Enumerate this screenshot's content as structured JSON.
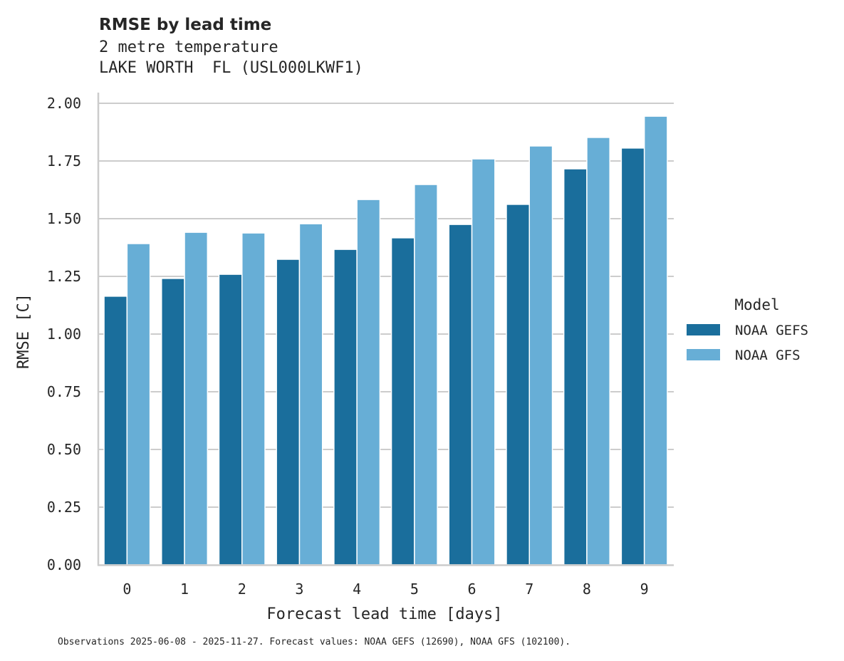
{
  "chart_data": {
    "type": "bar",
    "title": "RMSE by lead time",
    "subtitle_lines": [
      "2 metre temperature",
      "LAKE WORTH  FL (USL000LKWF1)"
    ],
    "xlabel": "Forecast lead time [days]",
    "ylabel": "RMSE [C]",
    "categories": [
      "0",
      "1",
      "2",
      "3",
      "4",
      "5",
      "6",
      "7",
      "8",
      "9"
    ],
    "series": [
      {
        "name": "NOAA GEFS",
        "color": "#1a6e9c",
        "values": [
          1.164,
          1.241,
          1.259,
          1.324,
          1.367,
          1.417,
          1.475,
          1.562,
          1.716,
          1.806
        ]
      },
      {
        "name": "NOAA GFS",
        "color": "#67aed6",
        "values": [
          1.392,
          1.441,
          1.438,
          1.478,
          1.583,
          1.648,
          1.759,
          1.815,
          1.852,
          1.944
        ]
      }
    ],
    "ylim": [
      0,
      2.05
    ],
    "yticks": [
      "0.00",
      "0.25",
      "0.50",
      "0.75",
      "1.00",
      "1.25",
      "1.50",
      "1.75",
      "2.00"
    ],
    "grid": "y",
    "legend": {
      "title": "Model",
      "position": "right"
    },
    "footnote": "Observations 2025-06-08 - 2025-11-27. Forecast values: NOAA GEFS (12690), NOAA GFS (102100)."
  }
}
